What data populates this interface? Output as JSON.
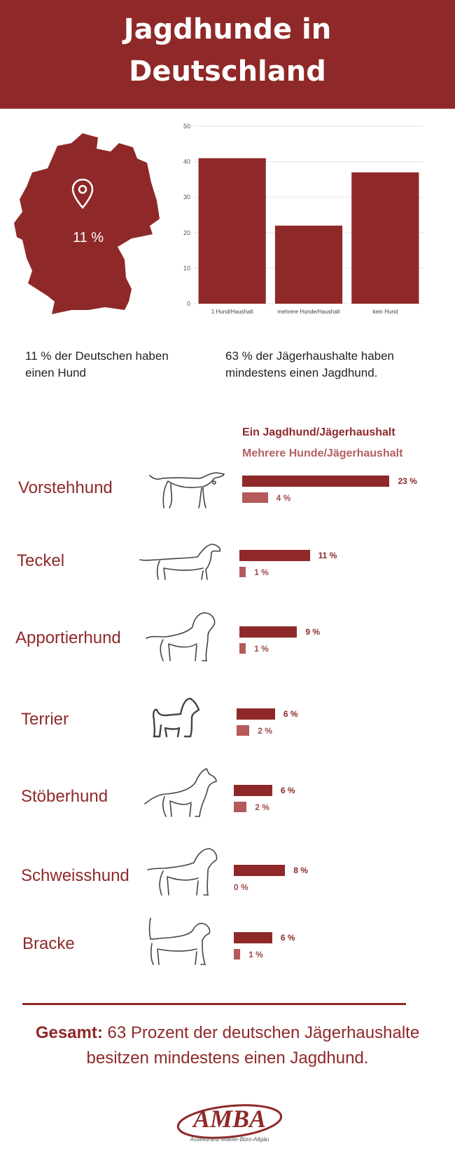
{
  "header": {
    "title_line1": "Jagdhunde in",
    "title_line2": "Deutschland"
  },
  "map": {
    "value": "11 %",
    "icon": "location-pin-icon"
  },
  "captions": {
    "left": "11 % der Deutschen haben einen Hund",
    "right": "63 % der Jägerhaushalte haben mindestens einen Jagdhund."
  },
  "chart_data": [
    {
      "type": "bar",
      "categories": [
        "1 Hund/Haushalt",
        "mehrere Hunde/Haushalt",
        "kein Hund"
      ],
      "values": [
        41,
        22,
        37
      ],
      "ylim": [
        0,
        50
      ],
      "yticks": [
        0,
        10,
        20,
        30,
        40,
        50
      ],
      "grid": true,
      "color": "#8f2929"
    },
    {
      "type": "bar",
      "orientation": "horizontal",
      "legend_placement": "top",
      "series": [
        {
          "name": "Ein Jagdhund/Jägerhaushalt",
          "color": "#8f2929",
          "values": [
            23,
            11,
            9,
            6,
            6,
            8,
            6
          ],
          "labels": [
            "23 %",
            "11 %",
            "9 %",
            "6 %",
            "6 %",
            "8 %",
            "6 %"
          ]
        },
        {
          "name": "Mehrere Hunde/Jägerhaushalt",
          "color": "#b45a5a",
          "values": [
            4,
            1,
            1,
            2,
            2,
            0,
            1
          ],
          "labels": [
            "4 %",
            "1 %",
            "1 %",
            "2 %",
            "2 %",
            "0 %",
            "1 %"
          ]
        }
      ],
      "categories": [
        "Vorstehhund",
        "Teckel",
        "Apportierhund",
        "Terrier",
        "Stöberhund",
        "Schweisshund",
        "Bracke"
      ]
    }
  ],
  "total": {
    "label": "Gesamt:",
    "text": " 63 Prozent der deutschen Jägerhaushalte besitzen mindestens einen Jagdhund."
  },
  "logo": {
    "name": "AMBA",
    "subtitle": "Assekuranz-Makler-Büro-Allgäu"
  }
}
